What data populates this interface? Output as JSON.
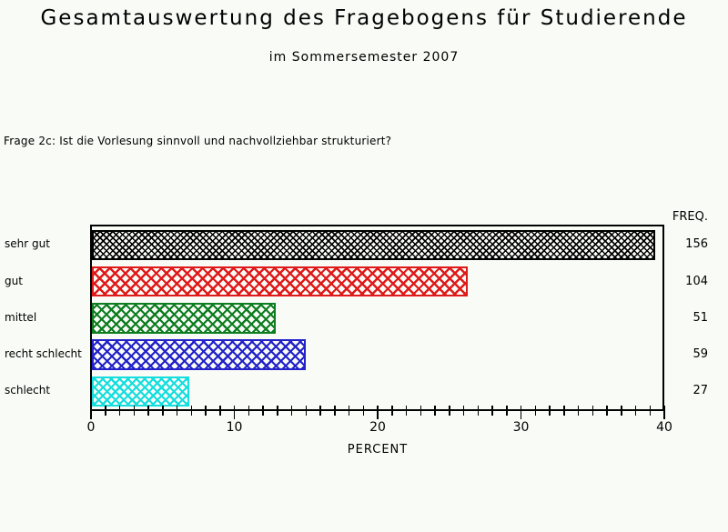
{
  "page": {
    "background": "#f9fbf7"
  },
  "chart_data": {
    "type": "bar",
    "orientation": "horizontal",
    "title": "Gesamtauswertung des Fragebogens für Studierende",
    "subtitle": "im Sommersemester 2007",
    "question": "Frage 2c: Ist die Vorlesung sinnvoll und nachvollziehbar strukturiert?",
    "categories": [
      "sehr gut",
      "gut",
      "mittel",
      "recht schlecht",
      "schlecht"
    ],
    "series": [
      {
        "name": "PERCENT",
        "values": [
          39.3,
          26.2,
          12.8,
          14.9,
          6.8
        ]
      },
      {
        "name": "FREQ.",
        "values": [
          156,
          104,
          51,
          59,
          27
        ]
      }
    ],
    "xlabel": "PERCENT",
    "freq_header": "FREQ.",
    "xlim": [
      0,
      40
    ],
    "x_major_ticks": [
      0,
      10,
      20,
      30,
      40
    ],
    "x_minor_tick_step": 1,
    "grid": false,
    "legend": false,
    "bar_pattern": "crosshatch",
    "bar_colors": [
      "#000000",
      "#df1a1a",
      "#0d7d20",
      "#2222c8",
      "#15dede"
    ],
    "hatch_period": [
      5,
      8,
      7.5,
      7.5,
      6.5
    ],
    "hatch_thickness": [
      1.6,
      2.4,
      2.2,
      2.2,
      2.2
    ]
  }
}
